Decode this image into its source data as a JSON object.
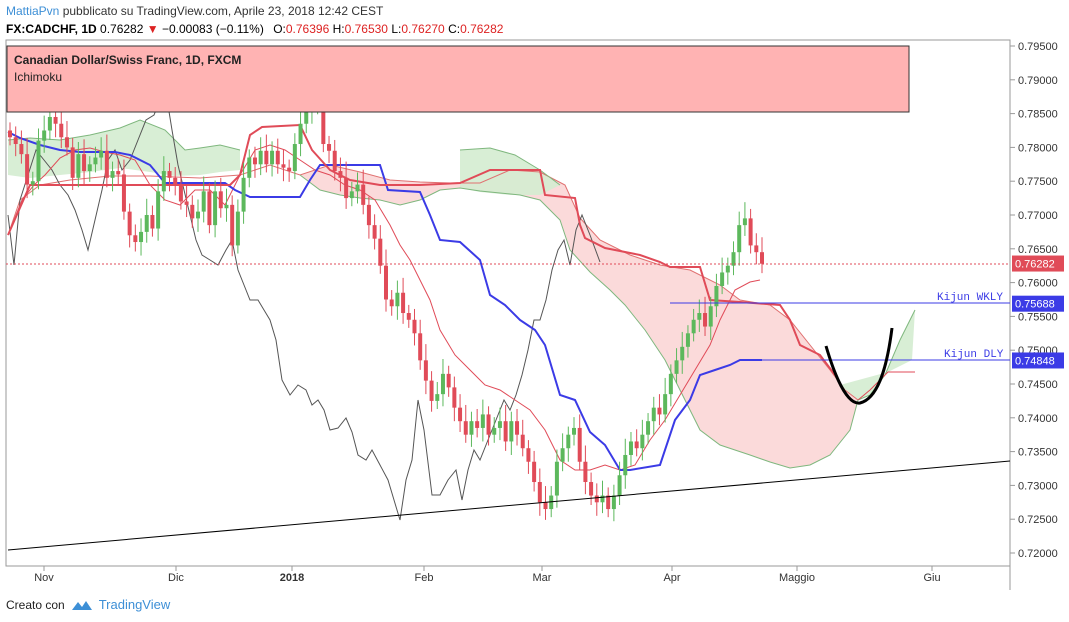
{
  "header": {
    "author": "MattiaPvn",
    "published": "pubblicato su TradingView.com, Aprile 23, 2018 12:42 CEST",
    "symbol": "FX:CADCHF, 1D",
    "last": "0.76282",
    "change": "−0.00083 (−0.11%)",
    "open_label": "O:",
    "open": "0.76396",
    "high_label": "H:",
    "high": "0.76530",
    "low_label": "L:",
    "low": "0.76270",
    "close_label": "C:",
    "close": "0.76282"
  },
  "info_box": {
    "title": "Canadian Dollar/Swiss Franc, 1D, FXCM",
    "indicator": "Ichimoku"
  },
  "footer": {
    "created_with": "Creato con",
    "brand": "TradingView"
  },
  "colors": {
    "up": "#5cb85c",
    "down": "#e04b58",
    "kijun": "#3b3be6",
    "tenkan": "#e04b58",
    "chikou": "#555555",
    "cloud_bull": "#d4ecd0",
    "cloud_bear": "#fbd6d6",
    "box_fill": "#ffb3b3"
  },
  "chart_data": {
    "type": "candlestick",
    "y_ticks": [
      "0.72000",
      "0.72500",
      "0.73000",
      "0.73500",
      "0.74000",
      "0.74500",
      "0.75000",
      "0.75500",
      "0.76000",
      "0.76500",
      "0.77000",
      "0.77500",
      "0.78000",
      "0.78500",
      "0.79000",
      "0.79500"
    ],
    "ylim": [
      0.7195,
      0.7953
    ],
    "x_ticks": [
      "Nov",
      "Dic",
      "2018",
      "Feb",
      "Mar",
      "Apr",
      "Maggio",
      "Giu"
    ],
    "price_labels": [
      {
        "text": "0.76282",
        "value": 0.76282,
        "color": "#e04b58"
      },
      {
        "text": "0.75688",
        "value": 0.75688,
        "color": "#3b3be6"
      },
      {
        "text": "0.74848",
        "value": 0.74848,
        "color": "#3b3be6"
      }
    ],
    "annotations": [
      {
        "text": "Kijun WKLY",
        "value": 0.75688
      },
      {
        "text": "Kijun DLY",
        "value": 0.74848
      }
    ],
    "approx_closes": [
      0.7815,
      0.7805,
      0.779,
      0.7745,
      0.775,
      0.781,
      0.7825,
      0.7845,
      0.7835,
      0.7815,
      0.78,
      0.7755,
      0.779,
      0.7765,
      0.7775,
      0.7785,
      0.7795,
      0.7755,
      0.7765,
      0.776,
      0.7705,
      0.767,
      0.766,
      0.7675,
      0.77,
      0.768,
      0.7735,
      0.7765,
      0.7755,
      0.7745,
      0.772,
      0.7715,
      0.7695,
      0.7705,
      0.7735,
      0.7685,
      0.7735,
      0.771,
      0.7715,
      0.7655,
      0.7705,
      0.7755,
      0.7785,
      0.7775,
      0.7795,
      0.7775,
      0.7795,
      0.7775,
      0.777,
      0.7765,
      0.7805,
      0.7835,
      0.7855,
      0.7865,
      0.7875,
      0.7805,
      0.7795,
      0.7765,
      0.7755,
      0.7725,
      0.7735,
      0.7745,
      0.7715,
      0.7685,
      0.7665,
      0.7625,
      0.7575,
      0.7565,
      0.7585,
      0.7555,
      0.7545,
      0.7525,
      0.7485,
      0.7455,
      0.7425,
      0.7435,
      0.7465,
      0.7445,
      0.7415,
      0.7395,
      0.7375,
      0.7395,
      0.7385,
      0.7405,
      0.7375,
      0.7385,
      0.7395,
      0.7365,
      0.7395,
      0.7375,
      0.7355,
      0.7335,
      0.7305,
      0.7275,
      0.7265,
      0.7285,
      0.7335,
      0.7355,
      0.7375,
      0.7385,
      0.7335,
      0.7305,
      0.7285,
      0.7275,
      0.7285,
      0.7265,
      0.7285,
      0.7315,
      0.7345,
      0.7365,
      0.7355,
      0.7375,
      0.7395,
      0.7415,
      0.7405,
      0.7435,
      0.7465,
      0.7485,
      0.7505,
      0.7525,
      0.7545,
      0.7555,
      0.7535,
      0.7565,
      0.7595,
      0.7615,
      0.7625,
      0.7645,
      0.7685,
      0.7695,
      0.7655,
      0.7645,
      0.7628
    ]
  }
}
